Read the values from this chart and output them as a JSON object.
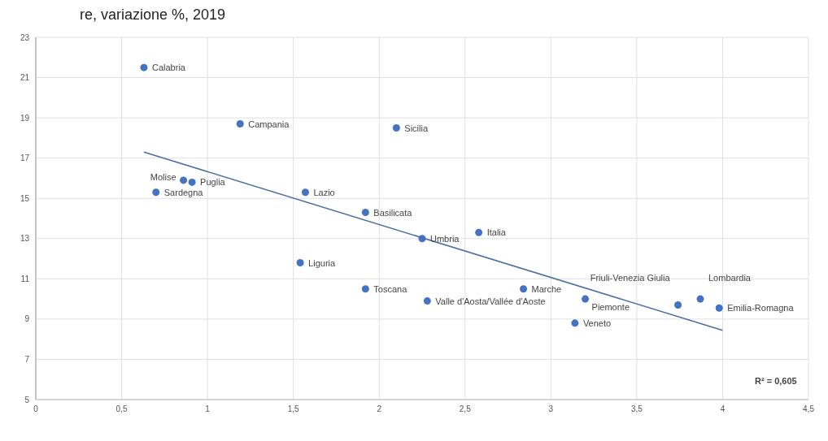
{
  "chart_data": {
    "type": "scatter",
    "title": "re, variazione %, 2019",
    "xlim": [
      0,
      4.5
    ],
    "xticks": [
      0,
      {
        "value": 0.5,
        "label": "0,5"
      },
      1,
      {
        "value": 1.5,
        "label": "1,5"
      },
      2,
      {
        "value": 2.5,
        "label": "2,5"
      },
      3,
      {
        "value": 3.5,
        "label": "3,5"
      },
      4,
      {
        "value": 4.5,
        "label": "4,5"
      }
    ],
    "ylim": [
      5,
      23
    ],
    "yticks": [
      5,
      7,
      9,
      11,
      13,
      15,
      17,
      19,
      21,
      23
    ],
    "grid": true,
    "series": [
      {
        "marker": "circle",
        "color": "#4472c4",
        "x": [
          0.63,
          1.19,
          2.1,
          0.86,
          0.91,
          0.7,
          1.57,
          1.92,
          2.25,
          2.58,
          1.54,
          1.92,
          2.28,
          2.84,
          3.2,
          3.14,
          3.74,
          3.87,
          3.98
        ],
        "values": [
          21.5,
          18.7,
          18.5,
          15.9,
          15.8,
          15.3,
          15.3,
          14.3,
          13.0,
          13.3,
          11.8,
          10.5,
          9.9,
          10.5,
          10.0,
          8.8,
          9.7,
          10.0,
          9.55
        ]
      },
      {
        "type": "line",
        "color": "#4a6fa5",
        "x": [
          0.63,
          4.0
        ],
        "values": [
          17.3,
          8.44
        ]
      }
    ],
    "annotations": [
      {
        "text": "Calabria",
        "x": 0.63,
        "y": 21.5
      },
      {
        "text": "Campania",
        "x": 1.19,
        "y": 18.7
      },
      {
        "text": "Sicilia",
        "x": 2.1,
        "y": 18.5
      },
      {
        "text": "Molise",
        "x": 0.86,
        "y": 15.9
      },
      {
        "text": "Puglia",
        "x": 0.91,
        "y": 15.8
      },
      {
        "text": "Sardegna",
        "x": 0.7,
        "y": 15.3
      },
      {
        "text": "Lazio",
        "x": 1.57,
        "y": 15.3
      },
      {
        "text": "Basilicata",
        "x": 1.92,
        "y": 14.3
      },
      {
        "text": "Umbria",
        "x": 2.25,
        "y": 13.0
      },
      {
        "text": "Italia",
        "x": 2.58,
        "y": 13.3
      },
      {
        "text": "Liguria",
        "x": 1.54,
        "y": 11.8
      },
      {
        "text": "Toscana",
        "x": 1.92,
        "y": 10.5
      },
      {
        "text": "Valle d'Aosta/Vallée d'Aoste",
        "x": 2.28,
        "y": 9.9
      },
      {
        "text": "Marche",
        "x": 2.84,
        "y": 10.5
      },
      {
        "text": "Piemonte",
        "x": 3.2,
        "y": 10.0
      },
      {
        "text": "Veneto",
        "x": 3.14,
        "y": 8.8
      },
      {
        "text": "Friuli-Venezia Giulia",
        "x": 3.74,
        "y": 9.7
      },
      {
        "text": "Lombardia",
        "x": 3.87,
        "y": 10.0
      },
      {
        "text": "Emilia-Romagna",
        "x": 3.98,
        "y": 9.55
      },
      "R² = 0,605"
    ]
  }
}
